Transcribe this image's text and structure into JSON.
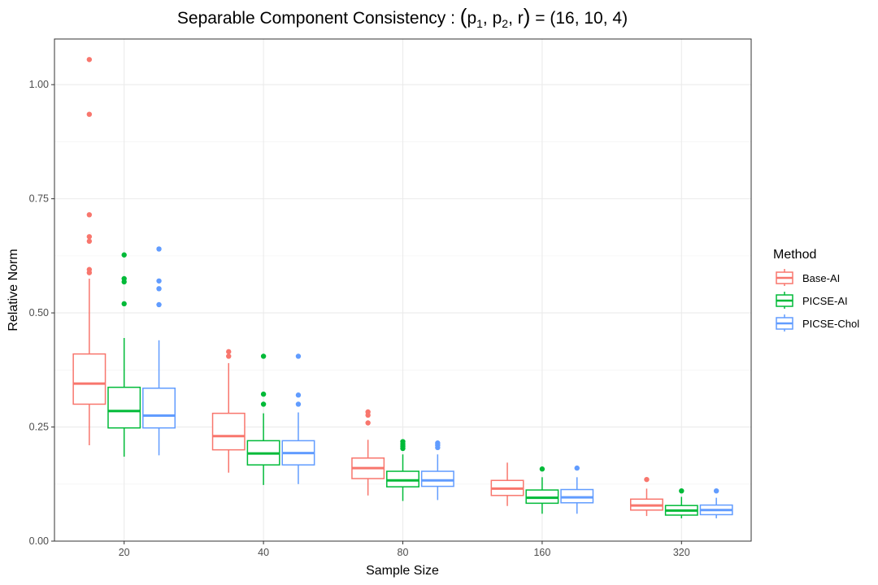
{
  "chart_data": {
    "type": "boxplot",
    "title": "Separable Component Consistency : (p1, p2, r) = (16, 10, 4)",
    "title_parts": {
      "prefix": "Separable Component Consistency : ",
      "p1_base": "p",
      "p1_sub": "1",
      "p2_base": "p",
      "p2_sub": "2",
      "r": "r",
      "values": "(16, 10, 4)"
    },
    "xlabel": "Sample Size",
    "ylabel": "Relative Norm",
    "categories": [
      "20",
      "40",
      "80",
      "160",
      "320"
    ],
    "ylim": [
      0,
      1.1
    ],
    "yticks": [
      0.0,
      0.25,
      0.5,
      0.75,
      1.0
    ],
    "ytick_labels": [
      "0.00",
      "0.25",
      "0.50",
      "0.75",
      "1.00"
    ],
    "grid": true,
    "legend": {
      "title": "Method",
      "position": "right",
      "entries": [
        "Base-AI",
        "PICSE-AI",
        "PICSE-Chol"
      ]
    },
    "series": [
      {
        "name": "Base-AI",
        "color": "#F8766D",
        "boxes": [
          {
            "lower": 0.21,
            "q1": 0.3,
            "median": 0.345,
            "q3": 0.41,
            "upper": 0.575,
            "outliers": [
              1.055,
              0.935,
              0.715,
              0.667,
              0.657,
              0.595,
              0.588
            ]
          },
          {
            "lower": 0.15,
            "q1": 0.2,
            "median": 0.23,
            "q3": 0.28,
            "upper": 0.39,
            "outliers": [
              0.415,
              0.405
            ]
          },
          {
            "lower": 0.1,
            "q1": 0.137,
            "median": 0.16,
            "q3": 0.182,
            "upper": 0.222,
            "outliers": [
              0.283,
              0.276,
              0.259
            ]
          },
          {
            "lower": 0.077,
            "q1": 0.1,
            "median": 0.115,
            "q3": 0.133,
            "upper": 0.172,
            "outliers": []
          },
          {
            "lower": 0.055,
            "q1": 0.068,
            "median": 0.078,
            "q3": 0.092,
            "upper": 0.115,
            "outliers": [
              0.135
            ]
          }
        ]
      },
      {
        "name": "PICSE-AI",
        "color": "#00BA38",
        "boxes": [
          {
            "lower": 0.185,
            "q1": 0.248,
            "median": 0.285,
            "q3": 0.337,
            "upper": 0.445,
            "outliers": [
              0.627,
              0.575,
              0.568,
              0.52
            ]
          },
          {
            "lower": 0.123,
            "q1": 0.167,
            "median": 0.192,
            "q3": 0.22,
            "upper": 0.28,
            "outliers": [
              0.405,
              0.322,
              0.3
            ]
          },
          {
            "lower": 0.088,
            "q1": 0.119,
            "median": 0.133,
            "q3": 0.153,
            "upper": 0.19,
            "outliers": [
              0.218,
              0.213,
              0.208,
              0.203
            ]
          },
          {
            "lower": 0.06,
            "q1": 0.083,
            "median": 0.095,
            "q3": 0.112,
            "upper": 0.14,
            "outliers": [
              0.158
            ]
          },
          {
            "lower": 0.05,
            "q1": 0.057,
            "median": 0.067,
            "q3": 0.078,
            "upper": 0.097,
            "outliers": [
              0.11
            ]
          }
        ]
      },
      {
        "name": "PICSE-Chol",
        "color": "#619CFF",
        "boxes": [
          {
            "lower": 0.188,
            "q1": 0.248,
            "median": 0.275,
            "q3": 0.335,
            "upper": 0.44,
            "outliers": [
              0.64,
              0.57,
              0.553,
              0.518
            ]
          },
          {
            "lower": 0.125,
            "q1": 0.167,
            "median": 0.193,
            "q3": 0.22,
            "upper": 0.282,
            "outliers": [
              0.405,
              0.32,
              0.3
            ]
          },
          {
            "lower": 0.09,
            "q1": 0.12,
            "median": 0.133,
            "q3": 0.153,
            "upper": 0.19,
            "outliers": [
              0.215,
              0.21,
              0.205
            ]
          },
          {
            "lower": 0.06,
            "q1": 0.084,
            "median": 0.096,
            "q3": 0.113,
            "upper": 0.14,
            "outliers": [
              0.16
            ]
          },
          {
            "lower": 0.05,
            "q1": 0.058,
            "median": 0.068,
            "q3": 0.079,
            "upper": 0.095,
            "outliers": [
              0.11
            ]
          }
        ]
      }
    ]
  }
}
